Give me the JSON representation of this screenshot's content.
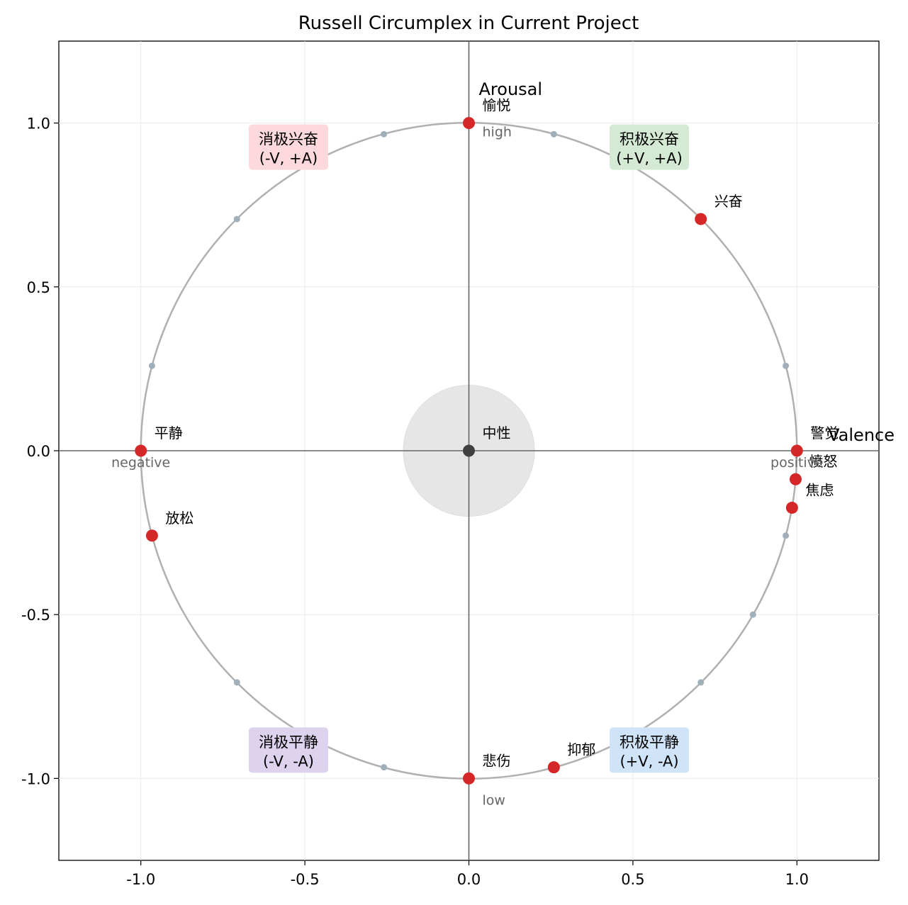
{
  "chart_data": {
    "type": "scatter",
    "title": "Russell Circumplex in Current Project",
    "xlim": [
      -1.25,
      1.25
    ],
    "ylim": [
      -1.25,
      1.25
    ],
    "xticks": [
      -1.0,
      -0.5,
      0.0,
      0.5,
      1.0
    ],
    "yticks": [
      -1.0,
      -0.5,
      0.0,
      0.5,
      1.0
    ],
    "xtick_labels": [
      "-1.0",
      "-0.5",
      "0.0",
      "0.5",
      "1.0"
    ],
    "ytick_labels": [
      "-1.0",
      "-0.5",
      "0.0",
      "0.5",
      "1.0"
    ],
    "grid": true,
    "axis_names": {
      "x": "Valence",
      "y": "Arousal"
    },
    "direction_labels": {
      "high": "high",
      "low": "low",
      "negative": "negative",
      "positive": "positive"
    },
    "unit_circle": {
      "radius": 1.0,
      "color": "#b0b0b0"
    },
    "circle_tick_points": [
      {
        "x": 0.966,
        "y": 0.259
      },
      {
        "x": 0.259,
        "y": 0.966
      },
      {
        "x": -0.259,
        "y": 0.966
      },
      {
        "x": -0.707,
        "y": 0.707
      },
      {
        "x": -0.966,
        "y": 0.259
      },
      {
        "x": -0.707,
        "y": -0.707
      },
      {
        "x": -0.259,
        "y": -0.966
      },
      {
        "x": 0.707,
        "y": -0.707
      },
      {
        "x": 0.866,
        "y": -0.5
      },
      {
        "x": 0.966,
        "y": -0.259
      }
    ],
    "neutral": {
      "label": "中性",
      "x": 0.0,
      "y": 0.0,
      "radius": 0.2,
      "color": "#404040",
      "zone_color": "#e6e6e6"
    },
    "emotions": [
      {
        "label": "愉悦",
        "x": 0.0,
        "y": 1.0
      },
      {
        "label": "兴奋",
        "x": 0.707,
        "y": 0.707
      },
      {
        "label": "警觉",
        "x": 1.0,
        "y": 0.0
      },
      {
        "label": "愤怒",
        "x": 0.996,
        "y": -0.087
      },
      {
        "label": "焦虑",
        "x": 0.985,
        "y": -0.174
      },
      {
        "label": "平静",
        "x": -1.0,
        "y": 0.0
      },
      {
        "label": "放松",
        "x": -0.966,
        "y": -0.259
      },
      {
        "label": "悲伤",
        "x": 0.0,
        "y": -1.0
      },
      {
        "label": "抑郁",
        "x": 0.259,
        "y": -0.966
      }
    ],
    "point_color": "#d62728",
    "quadrants": [
      {
        "line1": "积极兴奋",
        "line2": "(+V, +A)",
        "x": 0.55,
        "y": 0.92,
        "color": "#d5ead5"
      },
      {
        "line1": "消极兴奋",
        "line2": "(-V, +A)",
        "x": -0.55,
        "y": 0.92,
        "color": "#fdd8dd"
      },
      {
        "line1": "消极平静",
        "line2": "(-V, -A)",
        "x": -0.55,
        "y": -0.92,
        "color": "#ddd3ee"
      },
      {
        "line1": "积极平静",
        "line2": "(+V, -A)",
        "x": 0.55,
        "y": -0.92,
        "color": "#cfe4f8"
      }
    ]
  }
}
